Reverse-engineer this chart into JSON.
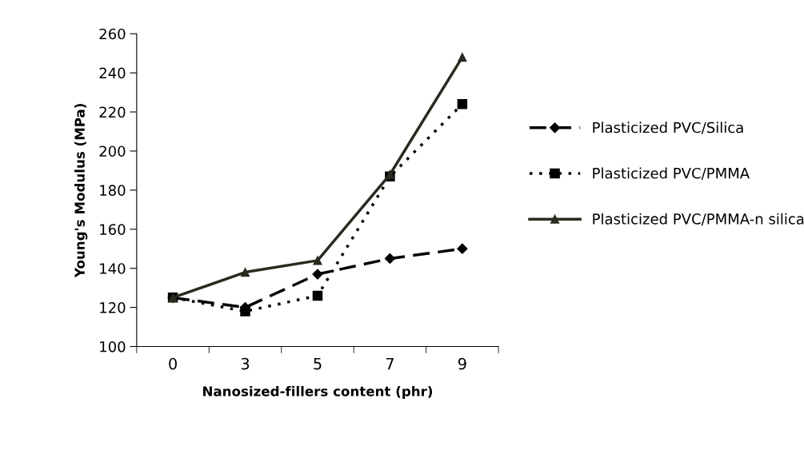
{
  "chart_data": {
    "type": "line",
    "xlabel": "Nanosized-fillers content (phr)",
    "ylabel": "Young's Modulus (MPa)",
    "categories": [
      "0",
      "3",
      "5",
      "7",
      "9"
    ],
    "series": [
      {
        "name": "Plasticized PVC/Silica",
        "color": "#000000",
        "marker": "diamond",
        "line_style": "dashed",
        "values": [
          125,
          120,
          137,
          145,
          150
        ]
      },
      {
        "name": "Plasticized PVC/PMMA",
        "color": "#000000",
        "marker": "square",
        "line_style": "dotted",
        "values": [
          125,
          118,
          126,
          187,
          224
        ]
      },
      {
        "name": "Plasticized PVC/PMMA-n silica",
        "color": "#2b2a1e",
        "marker": "triangle",
        "line_style": "solid",
        "values": [
          125,
          138,
          144,
          188,
          248
        ]
      }
    ],
    "ylim": [
      100,
      260
    ],
    "yticks": [
      100,
      120,
      140,
      160,
      180,
      200,
      220,
      240,
      260
    ],
    "grid": false,
    "legend": "right"
  }
}
